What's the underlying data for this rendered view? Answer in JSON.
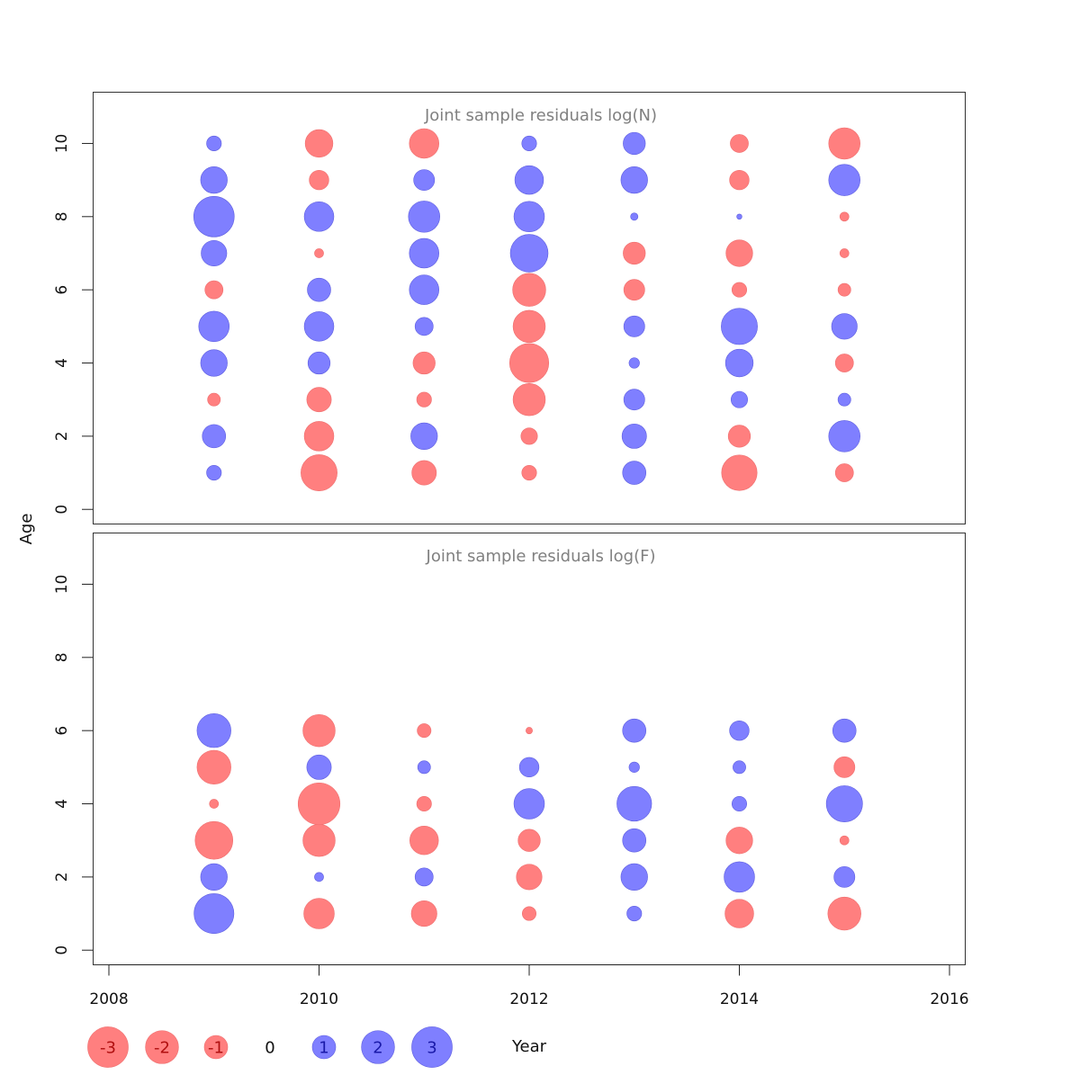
{
  "chart_data": {
    "type": "scatter",
    "style": "bubble",
    "xlabel": "Year",
    "ylabel": "Age",
    "xlim": [
      2007.85,
      2016.15
    ],
    "x_ticks": [
      2008,
      2010,
      2012,
      2014,
      2016
    ],
    "colors": {
      "positive": "#7f7fff",
      "negative": "#ff7f7f",
      "positive_text": "#1a1aa8",
      "negative_text": "#b01010"
    },
    "panels": [
      {
        "title": "Joint sample residuals log(N)",
        "ylim": [
          -0.4,
          11.4
        ],
        "y_ticks": [
          0,
          2,
          4,
          6,
          8,
          10
        ],
        "years": [
          2009,
          2010,
          2011,
          2012,
          2013,
          2014,
          2015
        ],
        "ages": [
          1,
          2,
          3,
          4,
          5,
          6,
          7,
          8,
          9,
          10
        ],
        "residuals": {
          "2009": [
            0.4,
            1.0,
            -0.3,
            1.3,
            1.7,
            -0.6,
            1.2,
            3.0,
            1.3,
            0.4
          ],
          "2010": [
            -2.4,
            -1.6,
            -1.1,
            0.9,
            1.6,
            1.0,
            -0.15,
            1.6,
            -0.7,
            -1.4
          ],
          "2011": [
            -1.1,
            1.3,
            -0.4,
            -0.9,
            0.6,
            1.6,
            1.6,
            1.8,
            0.8,
            -1.6
          ],
          "2012": [
            -0.4,
            -0.5,
            -1.9,
            -2.8,
            -1.9,
            -2.0,
            2.6,
            1.7,
            1.5,
            0.4
          ],
          "2013": [
            1.0,
            1.1,
            0.8,
            0.2,
            0.8,
            -0.8,
            -0.9,
            0.1,
            1.3,
            0.9
          ],
          "2014": [
            -2.3,
            -0.9,
            0.5,
            1.4,
            2.4,
            -0.4,
            -1.3,
            0.05,
            -0.7,
            -0.6
          ],
          "2015": [
            -0.6,
            1.8,
            0.3,
            -0.6,
            1.2,
            -0.3,
            -0.15,
            -0.15,
            1.8,
            -1.8
          ]
        }
      },
      {
        "title": "Joint sample residuals log(F)",
        "ylim": [
          -0.4,
          11.4
        ],
        "y_ticks": [
          0,
          2,
          4,
          6,
          8,
          10
        ],
        "years": [
          2009,
          2010,
          2011,
          2012,
          2013,
          2014,
          2015
        ],
        "ages": [
          1,
          2,
          3,
          4,
          5,
          6
        ],
        "residuals": {
          "2009": [
            2.9,
            1.3,
            -2.6,
            -0.15,
            -2.1,
            2.1
          ],
          "2010": [
            -1.7,
            0.15,
            -1.9,
            -3.2,
            1.1,
            -1.9
          ],
          "2011": [
            -1.2,
            0.6,
            -1.5,
            -0.4,
            0.3,
            -0.35
          ],
          "2012": [
            -0.35,
            -1.2,
            -0.9,
            1.7,
            0.7,
            -0.08
          ],
          "2013": [
            0.4,
            1.3,
            1.0,
            2.2,
            0.2,
            1.0
          ],
          "2014": [
            -1.5,
            1.7,
            -1.3,
            0.4,
            0.3,
            0.7
          ],
          "2015": [
            -2.0,
            0.8,
            -0.15,
            2.4,
            -0.8,
            1.0
          ]
        }
      }
    ],
    "legend": {
      "placement": "bottom",
      "entries": [
        {
          "label": "-3",
          "value": -3
        },
        {
          "label": "-2",
          "value": -2
        },
        {
          "label": "-1",
          "value": -1
        },
        {
          "label": "0",
          "value": 0
        },
        {
          "label": "1",
          "value": 1
        },
        {
          "label": "2",
          "value": 2
        },
        {
          "label": "3",
          "value": 3
        }
      ]
    }
  }
}
